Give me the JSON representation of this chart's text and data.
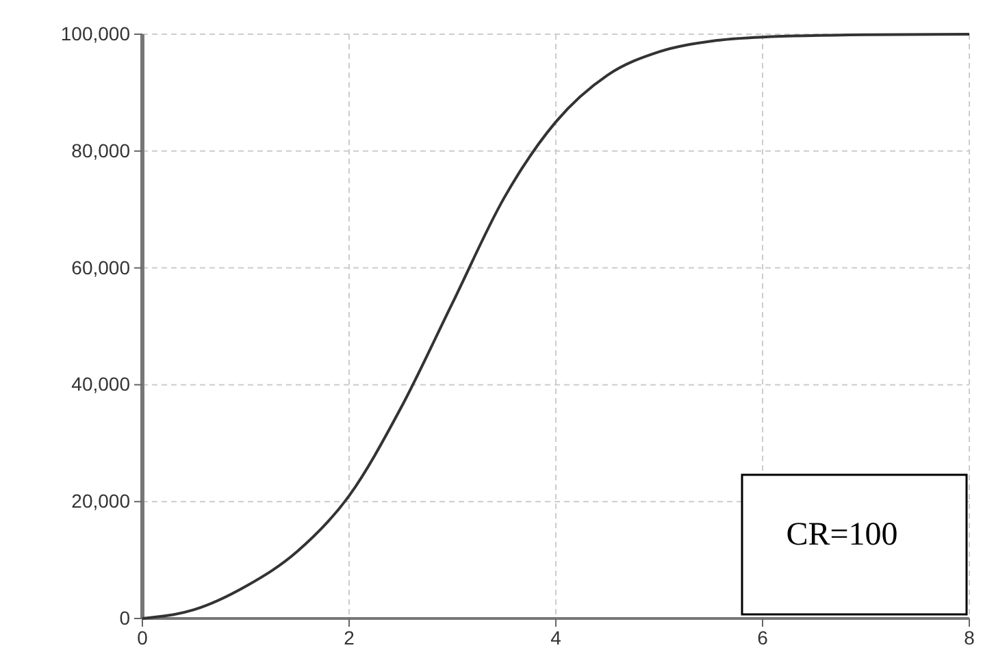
{
  "chart_data": {
    "type": "line",
    "x": [
      0,
      0.5,
      1,
      1.5,
      2,
      2.5,
      3,
      3.5,
      4,
      4.5,
      5,
      5.5,
      6,
      7,
      8
    ],
    "series": [
      {
        "color": "#333333",
        "values": [
          0,
          1500,
          5500,
          11500,
          21000,
          36000,
          54000,
          72000,
          85000,
          93000,
          97000,
          98800,
          99500,
          99900,
          100000
        ]
      }
    ],
    "xlim": [
      0,
      8
    ],
    "xticks": [
      0,
      2,
      4,
      6,
      8
    ],
    "ylim": [
      0,
      100000
    ],
    "yticks": [
      {
        "value": 0,
        "label": "0"
      },
      {
        "value": 20000,
        "label": "20,000"
      },
      {
        "value": 40000,
        "label": "40,000"
      },
      {
        "value": 60000,
        "label": "60,000"
      },
      {
        "value": 80000,
        "label": "80,000"
      },
      {
        "value": 100000,
        "label": "100,000"
      }
    ],
    "grid": true,
    "marker": "none",
    "line_style": "solid",
    "annotations": [
      "CR=100"
    ]
  }
}
